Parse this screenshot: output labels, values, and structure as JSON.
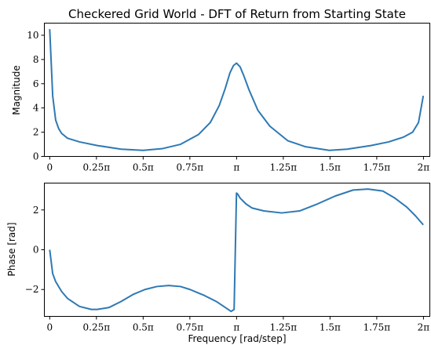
{
  "chart_data": {
    "title": "Checkered Grid World - DFT of Return from Starting State",
    "line_color": "#2e79b4",
    "grid": false,
    "subplots": [
      {
        "type": "line",
        "ylabel": "Magnitude",
        "xlabel": "",
        "xlim": [
          -0.09,
          6.39
        ],
        "ylim": [
          0,
          11
        ],
        "xticks": [
          0,
          0.7854,
          1.5708,
          2.3562,
          3.1416,
          3.927,
          4.7124,
          5.4978,
          6.2832
        ],
        "xtick_labels": [
          "0",
          "0.25π",
          "0.5π",
          "0.75π",
          "π",
          "1.25π",
          "1.5π",
          "1.75π",
          "2π"
        ],
        "yticks": [
          0,
          2,
          4,
          6,
          8,
          10
        ],
        "ytick_labels": [
          "0",
          "2",
          "4",
          "6",
          "8",
          "10"
        ],
        "x": [
          0,
          0.05,
          0.1,
          0.15,
          0.2,
          0.3,
          0.5,
          0.8,
          1.2,
          1.57,
          1.9,
          2.2,
          2.5,
          2.7,
          2.85,
          2.95,
          3.03,
          3.09,
          3.14,
          3.2,
          3.26,
          3.35,
          3.5,
          3.7,
          4.0,
          4.3,
          4.7,
          5.0,
          5.4,
          5.7,
          5.95,
          6.1,
          6.2,
          6.28
        ],
        "y": [
          10.5,
          5.0,
          3.0,
          2.3,
          1.9,
          1.5,
          1.2,
          0.9,
          0.6,
          0.5,
          0.65,
          1.0,
          1.8,
          2.8,
          4.2,
          5.6,
          6.9,
          7.5,
          7.7,
          7.4,
          6.7,
          5.5,
          3.8,
          2.5,
          1.3,
          0.8,
          0.5,
          0.6,
          0.9,
          1.2,
          1.6,
          2.0,
          2.8,
          5.0
        ]
      },
      {
        "type": "line",
        "ylabel": "Phase [rad]",
        "xlabel": "Frequency [rad/step]",
        "xlim": [
          -0.09,
          6.39
        ],
        "ylim": [
          -3.35,
          3.35
        ],
        "xticks": [
          0,
          0.7854,
          1.5708,
          2.3562,
          3.1416,
          3.927,
          4.7124,
          5.4978,
          6.2832
        ],
        "xtick_labels": [
          "0",
          "0.25π",
          "0.5π",
          "0.75π",
          "π",
          "1.25π",
          "1.5π",
          "1.75π",
          "2π"
        ],
        "yticks": [
          -2,
          0,
          2
        ],
        "ytick_labels": [
          "−2",
          "0",
          "2"
        ],
        "x": [
          0,
          0.05,
          0.1,
          0.2,
          0.3,
          0.5,
          0.7,
          0.8,
          1.0,
          1.2,
          1.4,
          1.6,
          1.8,
          2.0,
          2.2,
          2.36,
          2.6,
          2.8,
          2.95,
          3.05,
          3.1,
          3.14,
          3.16,
          3.2,
          3.3,
          3.4,
          3.6,
          3.9,
          4.2,
          4.5,
          4.8,
          5.1,
          5.35,
          5.6,
          5.8,
          6.0,
          6.15,
          6.28
        ],
        "y": [
          0,
          -1.2,
          -1.6,
          -2.1,
          -2.45,
          -2.85,
          -3.0,
          -3.0,
          -2.9,
          -2.6,
          -2.25,
          -2.0,
          -1.85,
          -1.8,
          -1.85,
          -2.0,
          -2.3,
          -2.6,
          -2.9,
          -3.1,
          -3.0,
          2.85,
          2.8,
          2.6,
          2.3,
          2.1,
          1.95,
          1.85,
          1.95,
          2.3,
          2.7,
          3.0,
          3.05,
          2.95,
          2.6,
          2.15,
          1.7,
          1.25
        ]
      }
    ]
  }
}
